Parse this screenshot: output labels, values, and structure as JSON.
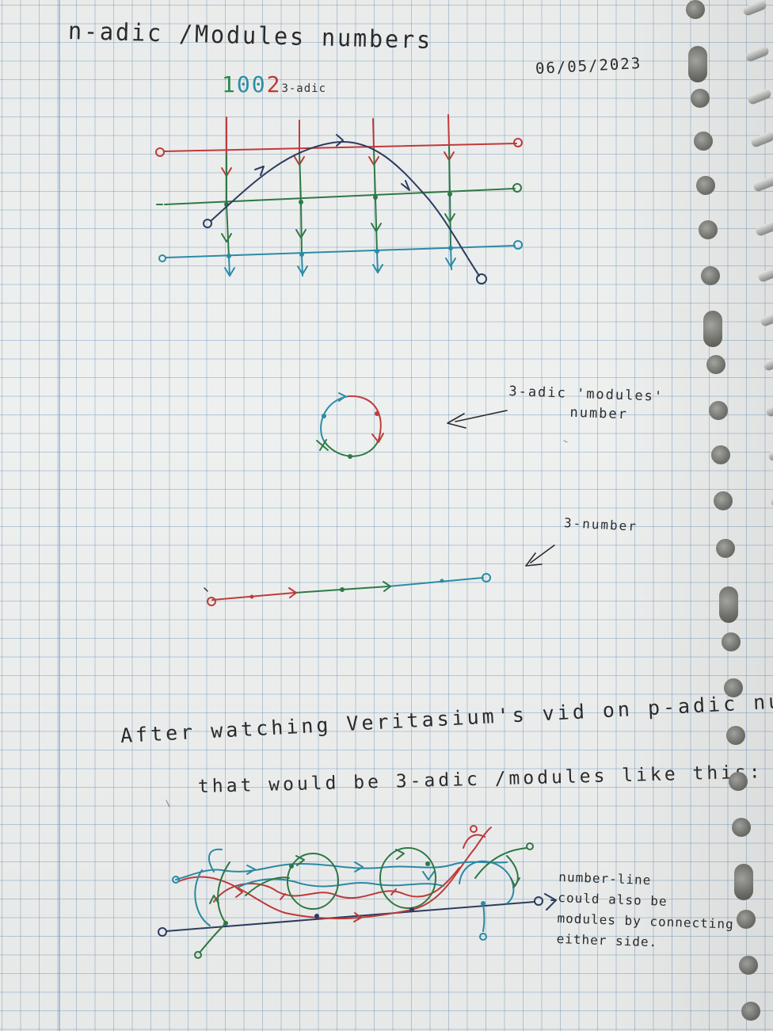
{
  "page": {
    "title": "n-adic /Modules numbers",
    "date": "06/05/2023"
  },
  "figure1": {
    "digits": [
      "1",
      "0",
      "0",
      "2"
    ],
    "subscript": "3-adic"
  },
  "figure2": {
    "label_line1": "3-adic 'modules'",
    "label_line2": "number"
  },
  "figure3": {
    "label": "3-number"
  },
  "text": {
    "sentence_line1": "After watching Veritasium's vid on p-adic numbers.",
    "sentence_line2": "that would be 3-adic /modules like this:"
  },
  "figure4": {
    "note_lines": [
      "number-line",
      "could also be",
      "modules by connecting",
      "either side"
    ],
    "note_text": "number-line\ncould also be\nmodules by connecting\neither side."
  },
  "colors": {
    "red": "#c23b3b",
    "green": "#2f7a45",
    "teal": "#2b8ca8",
    "navy": "#2e3d62",
    "pencil": "#2b2b2b"
  }
}
